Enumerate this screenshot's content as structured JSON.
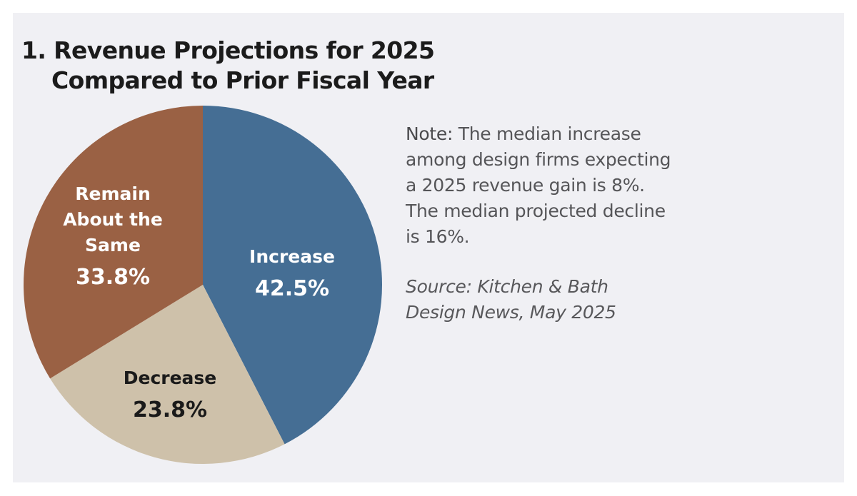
{
  "chart_data": {
    "type": "pie",
    "title_line1": "1. Revenue Projections for 2025",
    "title_line2": "Compared to Prior Fiscal Year",
    "slices": [
      {
        "label_lines": [
          "Increase"
        ],
        "value": 42.5,
        "value_label": "42.5%",
        "color": "#456e94",
        "text_color": "#ffffff"
      },
      {
        "label_lines": [
          "Decrease"
        ],
        "value": 23.8,
        "value_label": "23.8%",
        "color": "#cec1aa",
        "text_color": "#1a1a1a"
      },
      {
        "label_lines": [
          "Remain",
          "About the",
          "Same"
        ],
        "value": 33.8,
        "value_label": "33.8%",
        "color": "#9a6144",
        "text_color": "#ffffff"
      }
    ],
    "start_angle": "top",
    "direction": "clockwise",
    "legend": "none"
  },
  "note": {
    "lead": "Note:",
    "text": " The median increase among design firms expecting a 2025 revenue gain is 8%. The median projected decline is 16%."
  },
  "source": {
    "text": "Source: Kitchen & Bath Design News, May 2025"
  }
}
